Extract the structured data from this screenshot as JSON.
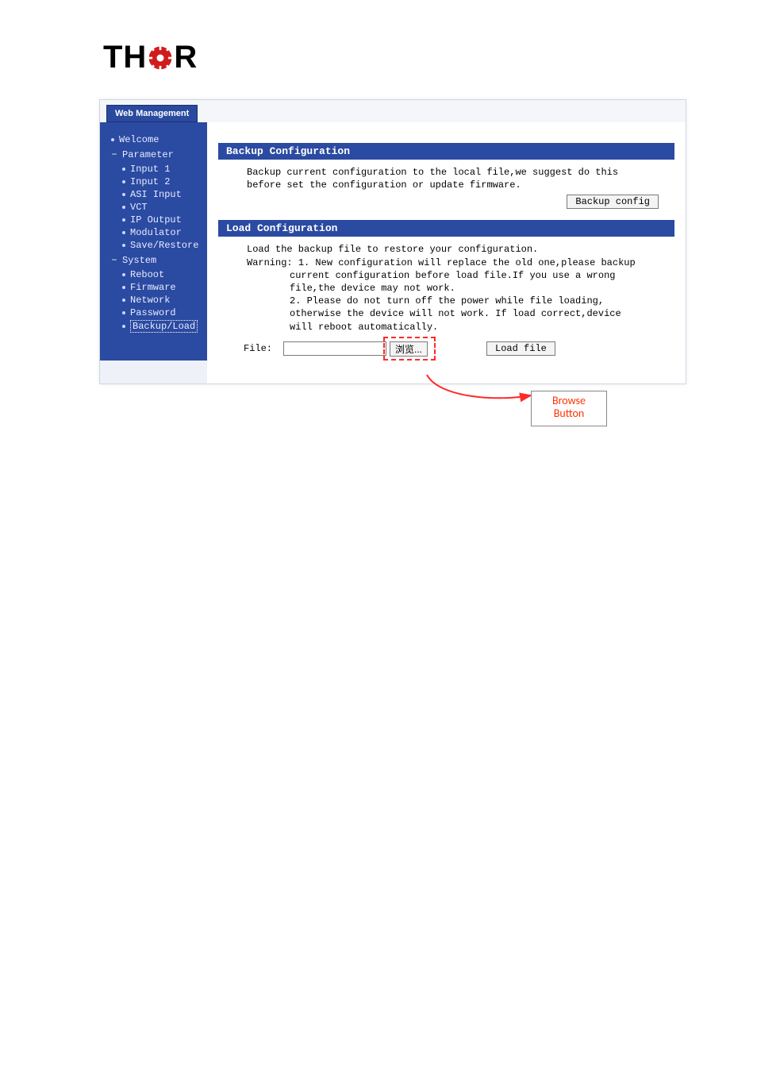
{
  "logo": {
    "left": "TH",
    "right": "R"
  },
  "header": {
    "tab_label": "Web Management"
  },
  "sidebar": {
    "welcome": "Welcome",
    "parameter_group": "Parameter",
    "parameter_items": [
      "Input 1",
      "Input 2",
      "ASI Input",
      "VCT",
      "IP Output",
      "Modulator",
      "Save/Restore"
    ],
    "system_group": "System",
    "system_items": [
      "Reboot",
      "Firmware",
      "Network",
      "Password",
      "Backup/Load"
    ],
    "active_index": 4
  },
  "backup_section": {
    "title": "Backup Configuration",
    "text_line1": "Backup current configuration to the local file,we suggest do this",
    "text_line2": "before set the configuration or update firmware.",
    "button_label": "Backup config"
  },
  "load_section": {
    "title": "Load Configuration",
    "intro": "Load the backup file to restore your configuration.",
    "warning_label": "Warning:",
    "warning1_a": "1. New configuration will replace the old one,please backup",
    "warning1_b": "current configuration before load file.If you use a wrong",
    "warning1_c": "file,the device may not work.",
    "warning2_a": "2. Please do not turn off the power while file loading,",
    "warning2_b": "otherwise the device will not work. If load correct,device",
    "warning2_c": "will reboot automatically.",
    "file_label": "File:",
    "browse_label": "浏览...",
    "load_button_label": "Load file"
  },
  "annotation": {
    "line1": "Browse",
    "line2": "Button"
  },
  "colors": {
    "primary": "#2b4aa1",
    "accent_red": "#ff2a2a",
    "callout_text": "#ff3300"
  }
}
